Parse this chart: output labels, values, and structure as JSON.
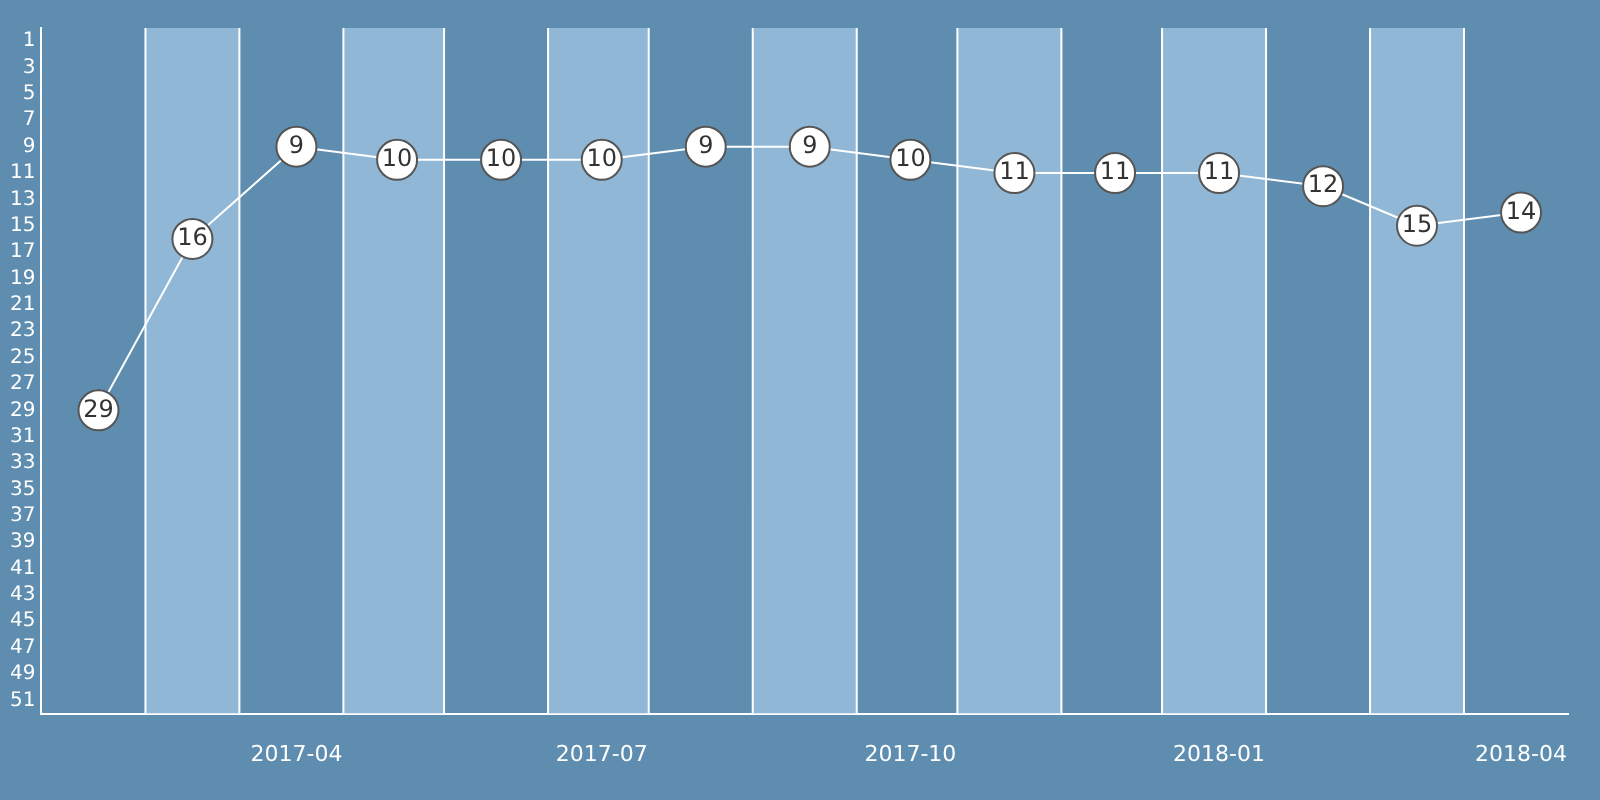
{
  "chart_data": {
    "type": "line",
    "x": [
      "2017-02",
      "2017-03",
      "2017-04",
      "2017-05",
      "2017-06",
      "2017-07",
      "2017-08",
      "2017-09",
      "2017-10",
      "2017-11",
      "2017-12",
      "2018-01",
      "2018-02",
      "2018-03",
      "2018-04"
    ],
    "series": [
      {
        "color": "#ffffff",
        "values": [
          29,
          16,
          9,
          10,
          10,
          10,
          9,
          9,
          10,
          11,
          11,
          11,
          12,
          15,
          14
        ]
      }
    ],
    "xlim": [
      "2017-01-15",
      "2018-04-15"
    ],
    "xticks": [
      "2017-04",
      "2017-07",
      "2017-10",
      "2018-01",
      "2018-04"
    ],
    "ylim": [
      52,
      0
    ],
    "yticks": [
      1,
      3,
      5,
      7,
      9,
      11,
      13,
      15,
      17,
      19,
      21,
      23,
      25,
      27,
      29,
      31,
      33,
      35,
      37,
      39,
      41,
      43,
      45,
      47,
      49,
      51
    ],
    "bands": [
      {
        "axis": "x",
        "from": "2017-02-15",
        "to": "2017-03-15",
        "color": "#90b8d6"
      },
      {
        "axis": "x",
        "from": "2017-04-15",
        "to": "2017-05-15",
        "color": "#90b8d6"
      },
      {
        "axis": "x",
        "from": "2017-06-15",
        "to": "2017-07-15",
        "color": "#90b8d6"
      },
      {
        "axis": "x",
        "from": "2017-08-15",
        "to": "2017-09-15",
        "color": "#90b8d6"
      },
      {
        "axis": "x",
        "from": "2017-10-15",
        "to": "2017-11-15",
        "color": "#90b8d6"
      },
      {
        "axis": "x",
        "from": "2017-12-15",
        "to": "2018-01-15",
        "color": "#90b8d6"
      },
      {
        "axis": "x",
        "from": "2018-02-15",
        "to": "2018-03-15",
        "color": "#90b8d6"
      }
    ],
    "marker": "circle",
    "data_labels": true,
    "grid": false,
    "legend": false
  }
}
